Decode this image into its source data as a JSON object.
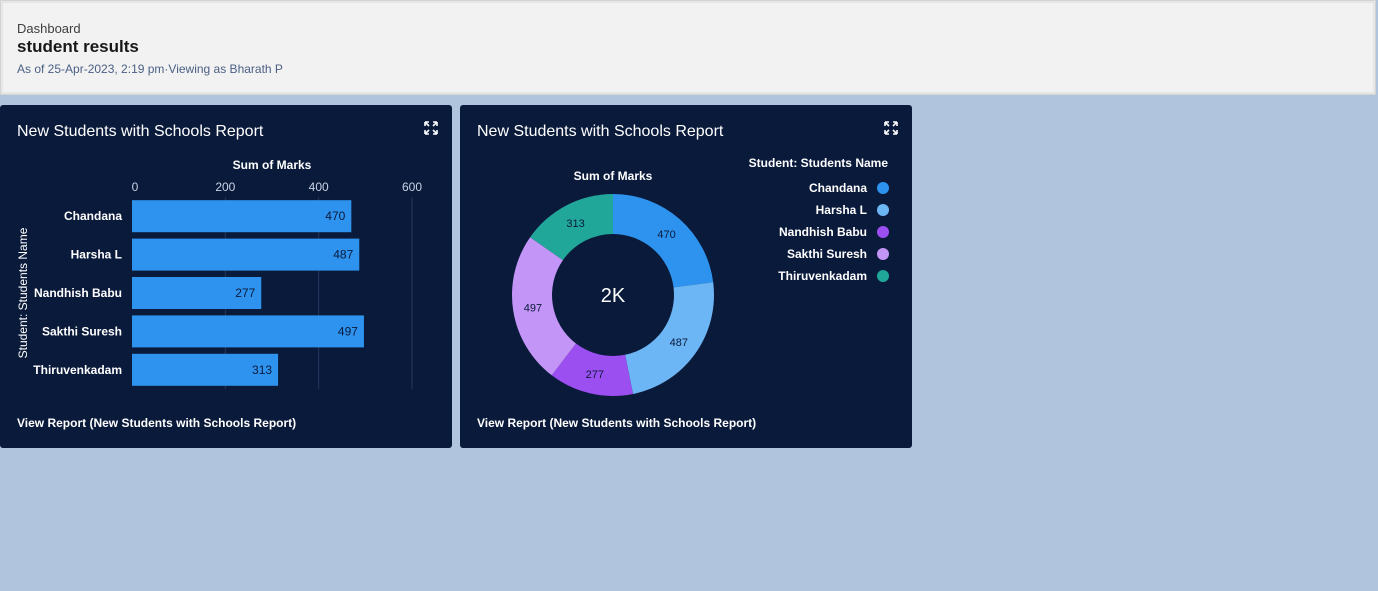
{
  "header": {
    "breadcrumb": "Dashboard",
    "title": "student results",
    "meta": "As of 25-Apr-2023, 2:19 pm·Viewing as Bharath P"
  },
  "cards": [
    {
      "title": "New Students with Schools Report",
      "view_report": "View Report (New Students with Schools Report)",
      "expand_icon": "expand-icon"
    },
    {
      "title": "New Students with Schools Report",
      "view_report": "View Report (New Students with Schools Report)",
      "expand_icon": "expand-icon"
    }
  ],
  "chart_data": [
    {
      "type": "bar",
      "orientation": "horizontal",
      "title": "",
      "xlabel": "Sum of Marks",
      "ylabel": "Student: Students Name",
      "categories": [
        "Chandana",
        "Harsha L",
        "Nandhish Babu",
        "Sakthi Suresh",
        "Thiruvenkadam"
      ],
      "values": [
        470,
        487,
        277,
        497,
        313
      ],
      "xlim": [
        0,
        600
      ],
      "ticks": [
        "0",
        "200",
        "400",
        "600"
      ],
      "bar_color": "#2e93ee",
      "grid": true
    },
    {
      "type": "pie",
      "donut": true,
      "title": "Sum of Marks",
      "center_label": "2K",
      "legend_title": "Student: Students Name",
      "legend_placement": "right",
      "categories": [
        "Chandana",
        "Harsha L",
        "Nandhish Babu",
        "Sakthi Suresh",
        "Thiruvenkadam"
      ],
      "values": [
        470,
        487,
        277,
        497,
        313
      ],
      "colors": [
        "#2e93ee",
        "#6cb6f5",
        "#9c4ff0",
        "#c295f7",
        "#21a69a"
      ]
    }
  ]
}
